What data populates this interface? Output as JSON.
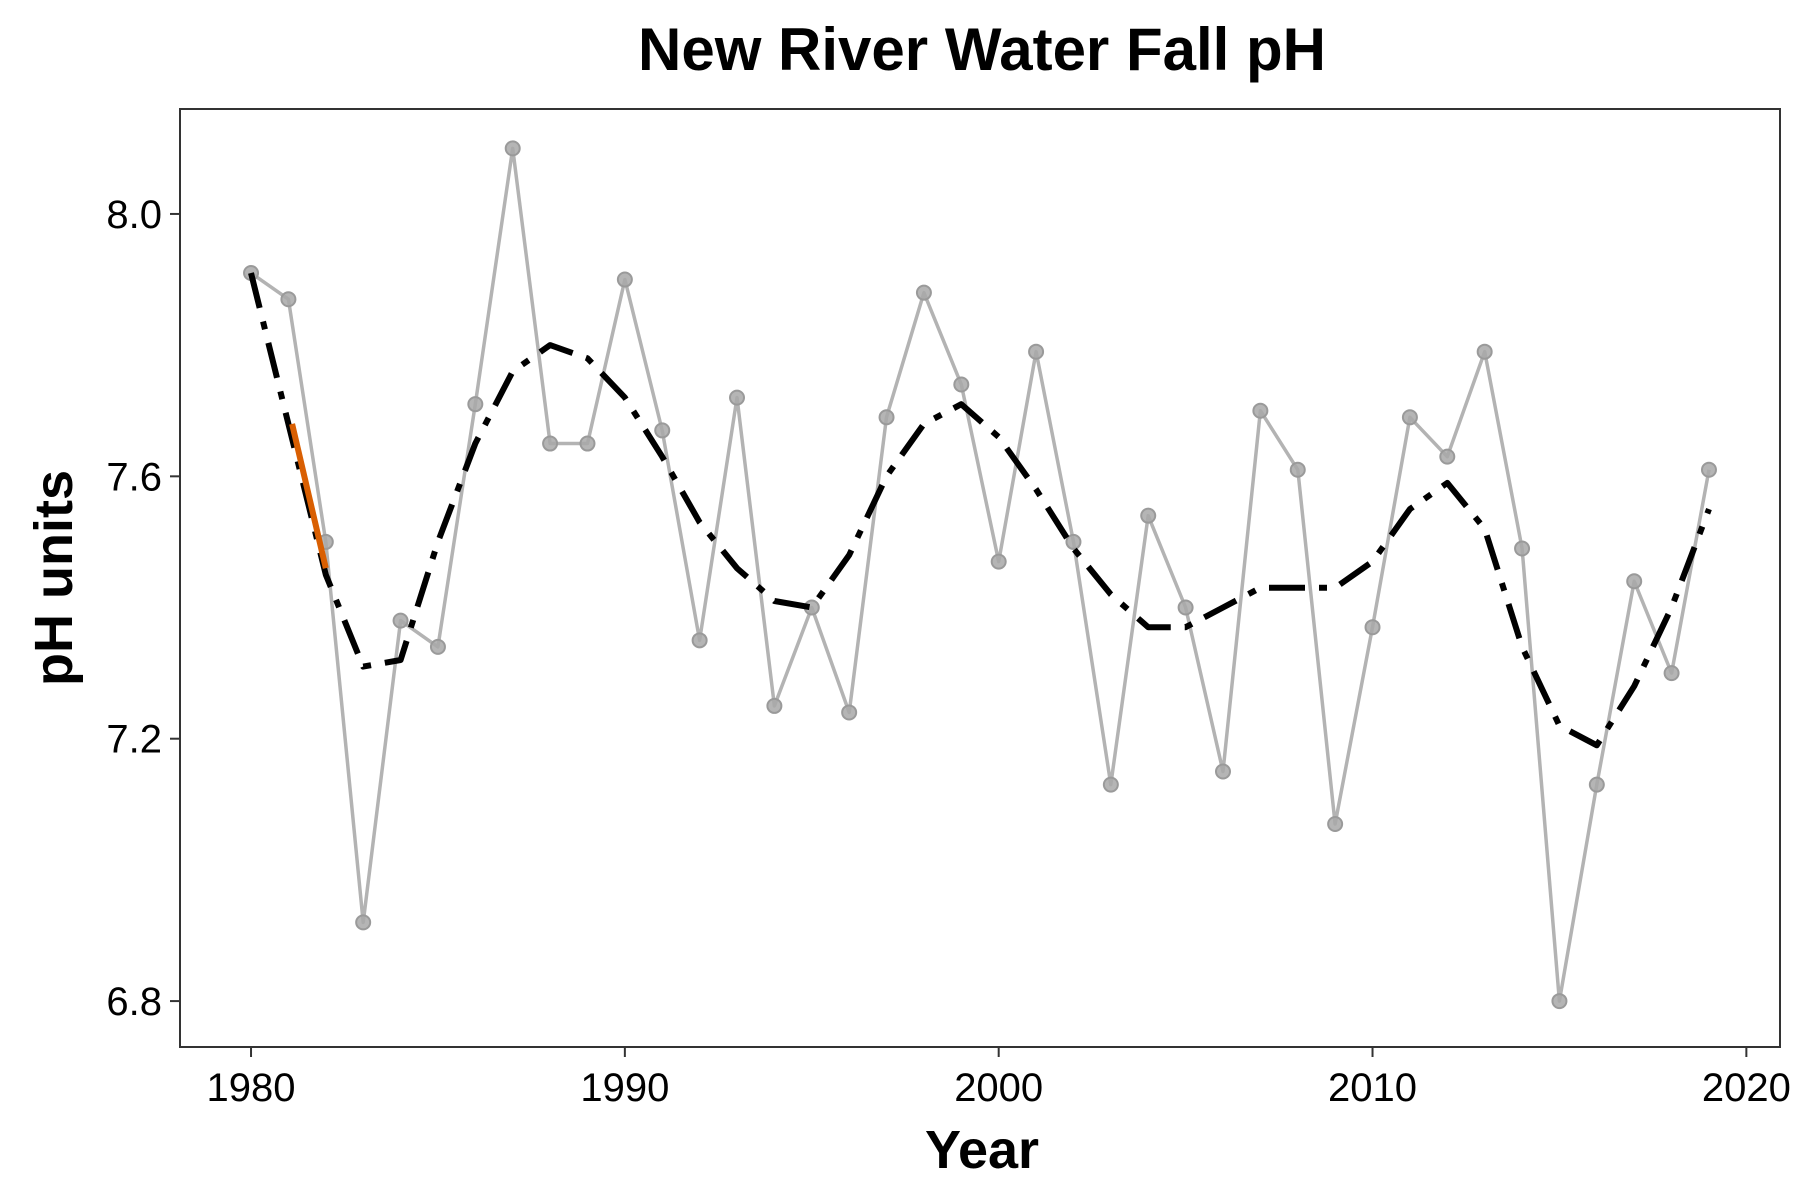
{
  "chart_data": {
    "type": "line",
    "title": "New River Water Fall pH",
    "xlabel": "Year",
    "ylabel": "pH units",
    "xlim": [
      1978.1,
      2020.9
    ],
    "ylim": [
      6.73,
      8.16
    ],
    "x_ticks": [
      1980,
      1990,
      2000,
      2010,
      2020
    ],
    "x_tick_labels": [
      "1980",
      "1990",
      "2000",
      "2010",
      "2020"
    ],
    "y_ticks": [
      6.8,
      7.2,
      7.6,
      8.0
    ],
    "y_tick_labels": [
      "6.8",
      "7.2",
      "7.6",
      "8.0"
    ],
    "grid": false,
    "legend": "none",
    "series": [
      {
        "style": "gray line with points",
        "color": "#b3b3b3",
        "x": [
          1980,
          1981,
          1982,
          1983,
          1984,
          1985,
          1986,
          1987,
          1988,
          1989,
          1990,
          1991,
          1992,
          1993,
          1994,
          1995,
          1996,
          1997,
          1998,
          1999,
          2000,
          2001,
          2002,
          2003,
          2004,
          2005,
          2006,
          2007,
          2008,
          2009,
          2010,
          2011,
          2012,
          2013,
          2014,
          2015,
          2016,
          2017,
          2018,
          2019
        ],
        "y": [
          7.91,
          7.87,
          7.5,
          6.92,
          7.38,
          7.34,
          7.71,
          8.1,
          7.65,
          7.65,
          7.9,
          7.67,
          7.35,
          7.72,
          7.25,
          7.4,
          7.24,
          7.69,
          7.88,
          7.74,
          7.47,
          7.79,
          7.5,
          7.13,
          7.54,
          7.4,
          7.15,
          7.7,
          7.61,
          7.07,
          7.37,
          7.69,
          7.63,
          7.79,
          7.49,
          6.8,
          7.13,
          7.44,
          7.3,
          7.61
        ]
      },
      {
        "style": "black dash-dot trend line",
        "color": "#000000",
        "x": [
          1980,
          1981,
          1982,
          1983,
          1984,
          1985,
          1986,
          1987,
          1988,
          1989,
          1990,
          1991,
          1992,
          1993,
          1994,
          1995,
          1996,
          1997,
          1998,
          1999,
          2000,
          2001,
          2002,
          2003,
          2004,
          2005,
          2006,
          2007,
          2008,
          2009,
          2010,
          2011,
          2012,
          2013,
          2014,
          2015,
          2016,
          2017,
          2018,
          2019
        ],
        "y": [
          7.91,
          7.68,
          7.45,
          7.31,
          7.32,
          7.5,
          7.65,
          7.76,
          7.8,
          7.78,
          7.72,
          7.63,
          7.53,
          7.46,
          7.41,
          7.4,
          7.48,
          7.6,
          7.68,
          7.71,
          7.66,
          7.58,
          7.49,
          7.42,
          7.37,
          7.37,
          7.4,
          7.43,
          7.43,
          7.43,
          7.47,
          7.55,
          7.59,
          7.52,
          7.34,
          7.22,
          7.19,
          7.28,
          7.4,
          7.55
        ]
      },
      {
        "style": "orange highlighted segment",
        "color": "#d95f02",
        "x": [
          1981.1,
          1982.0
        ],
        "y": [
          7.68,
          7.46
        ]
      }
    ]
  }
}
